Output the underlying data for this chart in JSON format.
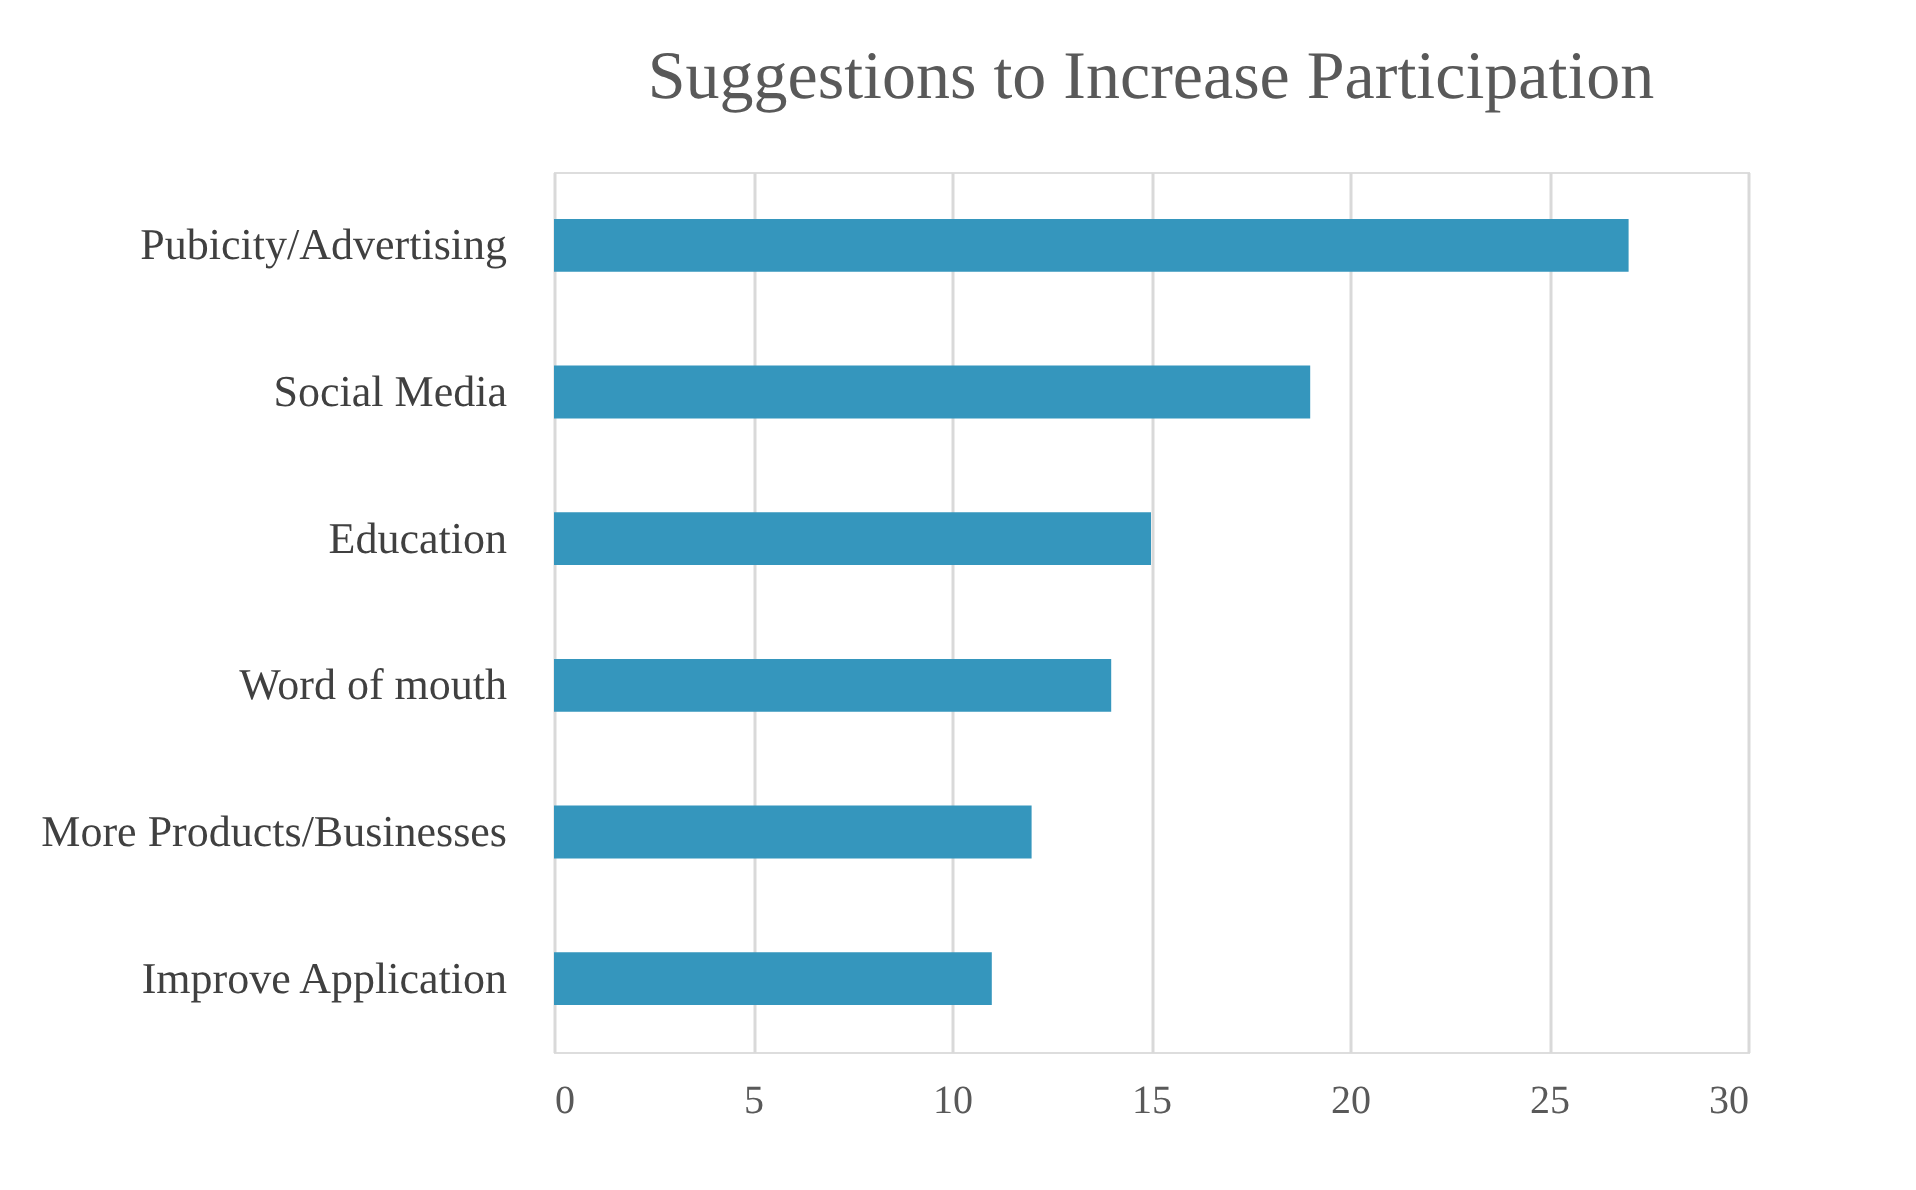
{
  "chart_data": {
    "type": "bar",
    "orientation": "horizontal",
    "title": "Suggestions to Increase Participation",
    "categories": [
      "Pubicity/Advertising",
      "Social Media",
      "Education",
      "Word of mouth",
      "More Products/Businesses",
      "Improve Application"
    ],
    "values": [
      27,
      19,
      15,
      14,
      12,
      11
    ],
    "color": "#3596bd",
    "xlim": [
      0,
      30
    ],
    "xticks": [
      0,
      5,
      10,
      15,
      20,
      25,
      30
    ],
    "grid": "x"
  }
}
